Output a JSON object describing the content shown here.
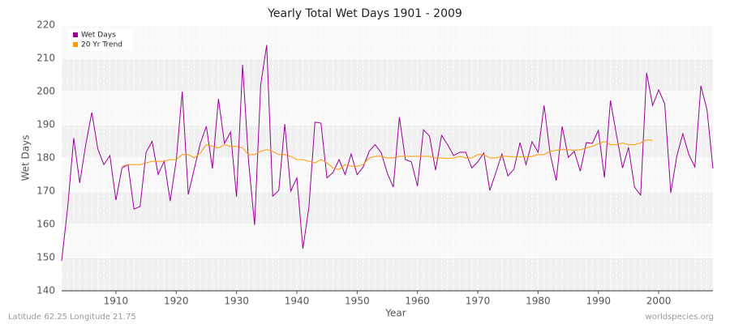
{
  "chart_data": {
    "type": "line",
    "title": "Yearly Total Wet Days 1901 - 2009",
    "xlabel": "Year",
    "ylabel": "Wet Days",
    "footer_left": "Latitude 62.25 Longitude 21.75",
    "footer_right": "worldspecies.org",
    "legend": "upper left",
    "grid": true,
    "xlim": [
      1901,
      2009
    ],
    "ylim": [
      140,
      220
    ],
    "xticks": [
      1910,
      1920,
      1930,
      1940,
      1950,
      1960,
      1970,
      1980,
      1990,
      2000
    ],
    "yticks": [
      140,
      150,
      160,
      170,
      180,
      190,
      200,
      210,
      220
    ],
    "x": [
      1901,
      1902,
      1903,
      1904,
      1905,
      1906,
      1907,
      1908,
      1909,
      1910,
      1911,
      1912,
      1913,
      1914,
      1915,
      1916,
      1917,
      1918,
      1919,
      1920,
      1921,
      1922,
      1923,
      1924,
      1925,
      1926,
      1927,
      1928,
      1929,
      1930,
      1931,
      1932,
      1933,
      1934,
      1935,
      1936,
      1937,
      1938,
      1939,
      1940,
      1941,
      1942,
      1943,
      1944,
      1945,
      1946,
      1947,
      1948,
      1949,
      1950,
      1951,
      1952,
      1953,
      1954,
      1955,
      1956,
      1957,
      1958,
      1959,
      1960,
      1961,
      1962,
      1963,
      1964,
      1965,
      1966,
      1967,
      1968,
      1969,
      1970,
      1971,
      1972,
      1973,
      1974,
      1975,
      1976,
      1977,
      1978,
      1979,
      1980,
      1981,
      1982,
      1983,
      1984,
      1985,
      1986,
      1987,
      1988,
      1989,
      1990,
      1991,
      1992,
      1993,
      1994,
      1995,
      1996,
      1997,
      1998,
      1999,
      2000,
      2001,
      2002,
      2003,
      2004,
      2005,
      2006,
      2007,
      2008,
      2009
    ],
    "series": [
      {
        "name": "Wet Days",
        "color": "#990099",
        "values": [
          149,
          165,
          186,
          172.5,
          184,
          193.7,
          182.7,
          178,
          180.7,
          167.3,
          177,
          178,
          164.6,
          165.4,
          181.7,
          185,
          175,
          179,
          167,
          179.3,
          200,
          169,
          176.8,
          184.4,
          189.5,
          176.8,
          197.8,
          184.4,
          187.8,
          168.3,
          208,
          178.8,
          159.8,
          202,
          214,
          168.5,
          170.2,
          190.2,
          170,
          174,
          152.7,
          165,
          190.8,
          190.5,
          174,
          175.6,
          179.5,
          175,
          181.2,
          175,
          177.3,
          182,
          184,
          181.5,
          175.4,
          171.2,
          192.3,
          179.5,
          178.8,
          171.5,
          188.5,
          186.6,
          176.3,
          186.8,
          184,
          180.7,
          181.7,
          181.7,
          177,
          178.8,
          181.5,
          170.2,
          175.6,
          181.2,
          174.6,
          176.6,
          184.6,
          178,
          184.9,
          181.7,
          195.8,
          181.2,
          173.2,
          189.5,
          180.2,
          182,
          176,
          184.6,
          184.4,
          188.3,
          174.1,
          197.3,
          187,
          177,
          183.2,
          171.2,
          168.8,
          205.6,
          195.8,
          200.5,
          196.3,
          169.5,
          180.5,
          187.3,
          181,
          177.3,
          201.7,
          194.6,
          176.8
        ]
      },
      {
        "name": "20 Yr Trend",
        "color": "#ff9900",
        "values": [
          null,
          null,
          null,
          null,
          null,
          null,
          null,
          null,
          null,
          null,
          177.5,
          178,
          178,
          178,
          178.5,
          179,
          179,
          179,
          179.5,
          179.5,
          181,
          181,
          180,
          181.5,
          184,
          183.5,
          183,
          184,
          183.5,
          183.5,
          183,
          181,
          181,
          182,
          182.5,
          182,
          181,
          181,
          180.5,
          179.5,
          179.5,
          179,
          178.5,
          179.5,
          178.5,
          177,
          176.5,
          178,
          177.5,
          177.5,
          178,
          180,
          180.5,
          180.5,
          180,
          180,
          180.5,
          180.5,
          180.5,
          180.5,
          180.5,
          180.5,
          180,
          180,
          179.8,
          180,
          180.5,
          180,
          180,
          181,
          181,
          180,
          180,
          180.5,
          180.5,
          180.3,
          180.3,
          180.3,
          180.5,
          181,
          181,
          182,
          182.3,
          182.5,
          182.5,
          182.3,
          182.5,
          183,
          183.5,
          184.3,
          185,
          184,
          184,
          184.5,
          184,
          184,
          184.5,
          185.5,
          185.3,
          null,
          null,
          null,
          null,
          null,
          null,
          null,
          null,
          null,
          null
        ]
      }
    ]
  }
}
